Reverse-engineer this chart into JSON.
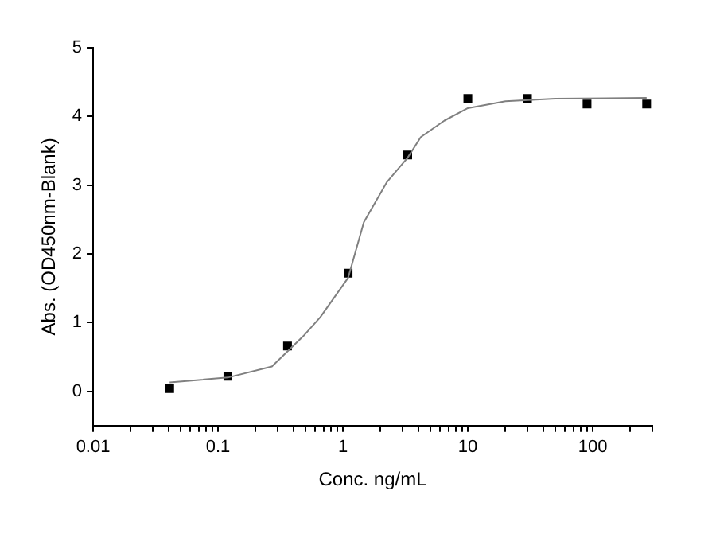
{
  "chart_data": {
    "type": "scatter",
    "xlabel": "Conc. ng/mL",
    "ylabel": "Abs. (OD450nm-Blank)",
    "log": "x",
    "grid": false,
    "legend": false,
    "xlim": [
      0.01,
      300
    ],
    "ylim": [
      -0.5,
      5
    ],
    "xticks": [
      0.01,
      {
        "value": 0.02,
        "label": null
      },
      {
        "value": 0.03,
        "label": null
      },
      {
        "value": 0.04,
        "label": null
      },
      {
        "value": 0.05,
        "label": null
      },
      {
        "value": 0.06,
        "label": null
      },
      {
        "value": 0.07,
        "label": null
      },
      {
        "value": 0.08,
        "label": null
      },
      {
        "value": 0.09,
        "label": null
      },
      0.1,
      {
        "value": 0.2,
        "label": null
      },
      {
        "value": 0.3,
        "label": null
      },
      {
        "value": 0.4,
        "label": null
      },
      {
        "value": 0.5,
        "label": null
      },
      {
        "value": 0.6,
        "label": null
      },
      {
        "value": 0.7,
        "label": null
      },
      {
        "value": 0.8,
        "label": null
      },
      {
        "value": 0.9,
        "label": null
      },
      1,
      {
        "value": 2,
        "label": null
      },
      {
        "value": 3,
        "label": null
      },
      {
        "value": 4,
        "label": null
      },
      {
        "value": 5,
        "label": null
      },
      {
        "value": 6,
        "label": null
      },
      {
        "value": 7,
        "label": null
      },
      {
        "value": 8,
        "label": null
      },
      {
        "value": 9,
        "label": null
      },
      10,
      {
        "value": 20,
        "label": null
      },
      {
        "value": 30,
        "label": null
      },
      {
        "value": 40,
        "label": null
      },
      {
        "value": 50,
        "label": null
      },
      {
        "value": 60,
        "label": null
      },
      {
        "value": 70,
        "label": null
      },
      {
        "value": 80,
        "label": null
      },
      {
        "value": 90,
        "label": null
      },
      100,
      {
        "value": 200,
        "label": null
      },
      {
        "value": 300,
        "label": null
      }
    ],
    "yticks": [
      0,
      1,
      2,
      3,
      4,
      5
    ],
    "series": [
      {
        "type": "line",
        "color": "#808080",
        "marker": "none",
        "line_style": "solid",
        "x": [
          0.041,
          0.12,
          0.27,
          0.48,
          0.66,
          1.1,
          1.47,
          2.24,
          3.3,
          4.2,
          6.5,
          10,
          20,
          50,
          270
        ],
        "values": [
          0.13,
          0.2,
          0.36,
          0.8,
          1.08,
          1.65,
          2.46,
          3.04,
          3.4,
          3.7,
          3.94,
          4.12,
          4.22,
          4.26,
          4.27
        ]
      },
      {
        "type": "scatter",
        "color": "#000000",
        "marker": "square",
        "x": [
          0.041,
          0.12,
          0.36,
          1.1,
          3.3,
          10,
          30,
          90,
          270
        ],
        "values": [
          0.04,
          0.22,
          0.66,
          1.72,
          3.44,
          4.26,
          4.26,
          4.18,
          4.18
        ]
      }
    ]
  }
}
